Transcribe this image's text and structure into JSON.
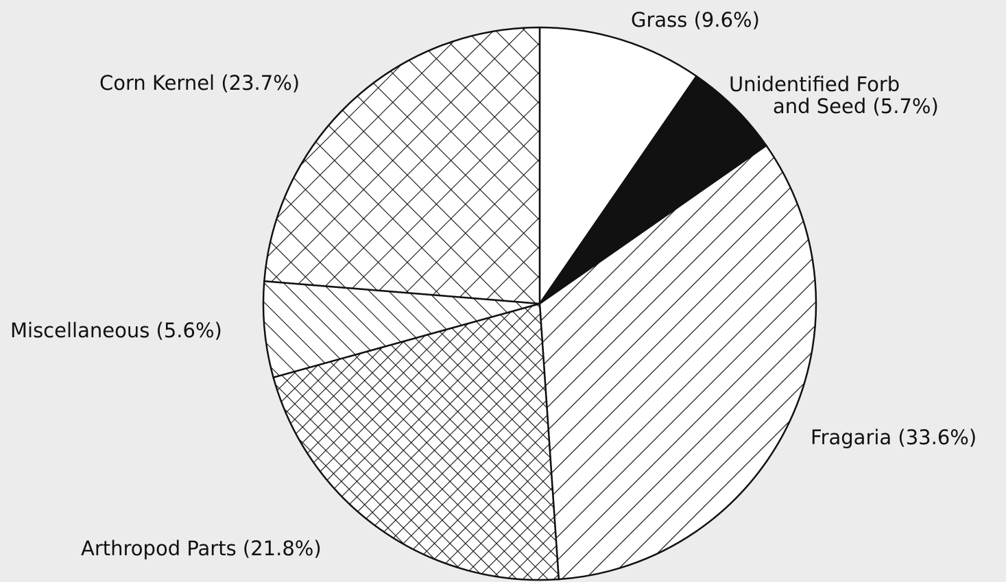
{
  "chart_data": {
    "type": "pie",
    "categories": [
      "Grass (9.6%)",
      "Unidentified Forb\nand Seed (5.7%)",
      "Fragaria (33.6%)",
      "Arthropod Parts (21.8%)",
      "Miscellaneous (5.6%)",
      "Corn Kernel (23.7%)"
    ],
    "values": [
      9.6,
      5.7,
      33.6,
      21.8,
      5.6,
      23.7
    ],
    "patterns": [
      "solid-white",
      "solid-black",
      "hatch-back",
      "cross-fine",
      "hatch-forward",
      "cross-wide"
    ]
  }
}
